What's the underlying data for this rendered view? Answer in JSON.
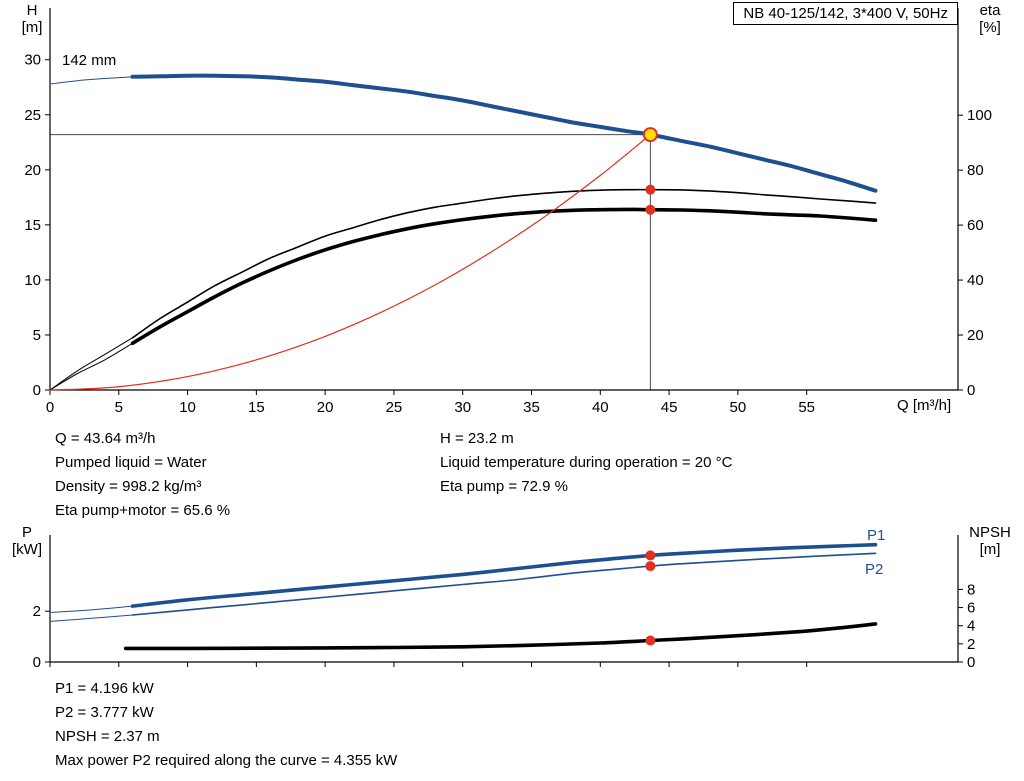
{
  "title_box": {
    "text": "NB 40-125/142, 3*400 V, 50Hz"
  },
  "labels": {
    "h_axis": [
      "H",
      "[m]"
    ],
    "eta_axis": [
      "eta",
      "[%]"
    ],
    "q_axis": "Q [m³/h]",
    "p_axis": [
      "P",
      "[kW]"
    ],
    "npsh_axis": [
      "NPSH",
      "[m]"
    ],
    "impeller": "142 mm",
    "p1": "P1",
    "p2": "P2"
  },
  "colors": {
    "curve_blue": "#1d4f91",
    "curve_black": "#000000",
    "curve_red": "#e0301e",
    "duty_fill": "#ffdf00",
    "duty_stroke": "#e0301e",
    "dot_red": "#e0301e",
    "crosshair": "#4a4a4a"
  },
  "chart_data": [
    {
      "id": "qh",
      "type": "line",
      "title": "NB 40-125/142, 3*400 V, 50Hz",
      "x": {
        "label": "Q [m³/h]",
        "range": [
          0,
          66
        ],
        "ticks": [
          0,
          5,
          10,
          15,
          20,
          25,
          30,
          35,
          40,
          45,
          50,
          55
        ]
      },
      "y_left": {
        "label": "H [m]",
        "range": [
          0,
          34.7
        ],
        "ticks": [
          0,
          5,
          10,
          15,
          20,
          25,
          30
        ]
      },
      "y_right": {
        "label": "eta [%]",
        "range": [
          0,
          139
        ],
        "ticks": [
          0,
          20,
          40,
          60,
          80,
          100
        ]
      },
      "series": [
        {
          "name": "head-curve-142mm",
          "axis": "left",
          "color": "#1d4f91",
          "width": 4,
          "thin_until": 6,
          "points": [
            [
              0,
              27.8
            ],
            [
              2,
              28.1
            ],
            [
              4,
              28.3
            ],
            [
              6,
              28.45
            ],
            [
              8,
              28.5
            ],
            [
              10,
              28.55
            ],
            [
              12,
              28.55
            ],
            [
              14,
              28.5
            ],
            [
              16,
              28.4
            ],
            [
              18,
              28.2
            ],
            [
              20,
              28.0
            ],
            [
              22,
              27.7
            ],
            [
              24,
              27.4
            ],
            [
              26,
              27.1
            ],
            [
              28,
              26.7
            ],
            [
              30,
              26.3
            ],
            [
              32,
              25.8
            ],
            [
              34,
              25.3
            ],
            [
              36,
              24.8
            ],
            [
              38,
              24.3
            ],
            [
              40,
              23.9
            ],
            [
              42,
              23.5
            ],
            [
              43.64,
              23.2
            ],
            [
              46,
              22.6
            ],
            [
              48,
              22.1
            ],
            [
              50,
              21.5
            ],
            [
              52,
              20.9
            ],
            [
              54,
              20.3
            ],
            [
              56,
              19.6
            ],
            [
              58,
              18.9
            ],
            [
              60,
              18.1
            ]
          ]
        },
        {
          "name": "eta-pump",
          "axis": "right",
          "color": "#000000",
          "width": 1.6,
          "thin_until": 6,
          "points": [
            [
              0,
              0
            ],
            [
              2,
              7
            ],
            [
              4,
              13
            ],
            [
              6,
              19
            ],
            [
              8,
              26
            ],
            [
              10,
              32
            ],
            [
              12,
              38
            ],
            [
              14,
              43
            ],
            [
              16,
              48
            ],
            [
              18,
              52
            ],
            [
              20,
              56
            ],
            [
              22,
              59
            ],
            [
              24,
              62
            ],
            [
              26,
              64.5
            ],
            [
              28,
              66.5
            ],
            [
              30,
              68
            ],
            [
              32,
              69.5
            ],
            [
              34,
              70.7
            ],
            [
              36,
              71.6
            ],
            [
              38,
              72.3
            ],
            [
              40,
              72.7
            ],
            [
              42,
              72.9
            ],
            [
              43.64,
              72.9
            ],
            [
              46,
              72.8
            ],
            [
              48,
              72.4
            ],
            [
              50,
              71.8
            ],
            [
              52,
              71
            ],
            [
              54,
              70.3
            ],
            [
              56,
              69.5
            ],
            [
              58,
              68.8
            ],
            [
              60,
              68
            ]
          ]
        },
        {
          "name": "eta-pump-motor",
          "axis": "right",
          "color": "#000000",
          "width": 3.6,
          "thin_until": 6,
          "points": [
            [
              0,
              0
            ],
            [
              2,
              6
            ],
            [
              4,
              11
            ],
            [
              6,
              17
            ],
            [
              8,
              23
            ],
            [
              10,
              28.5
            ],
            [
              12,
              34
            ],
            [
              14,
              39
            ],
            [
              16,
              43.5
            ],
            [
              18,
              47.5
            ],
            [
              20,
              51
            ],
            [
              22,
              54
            ],
            [
              24,
              56.5
            ],
            [
              26,
              58.7
            ],
            [
              28,
              60.5
            ],
            [
              30,
              62
            ],
            [
              32,
              63.2
            ],
            [
              34,
              64.2
            ],
            [
              36,
              64.9
            ],
            [
              38,
              65.4
            ],
            [
              40,
              65.6
            ],
            [
              42,
              65.7
            ],
            [
              43.64,
              65.6
            ],
            [
              46,
              65.5
            ],
            [
              48,
              65.2
            ],
            [
              50,
              64.7
            ],
            [
              52,
              64.1
            ],
            [
              54,
              63.7
            ],
            [
              56,
              63.3
            ],
            [
              58,
              62.6
            ],
            [
              60,
              61.8
            ]
          ]
        },
        {
          "name": "system-curve",
          "axis": "left",
          "color": "#e0301e",
          "width": 1.2,
          "points": [
            [
              0,
              0
            ],
            [
              4,
              0.19
            ],
            [
              8,
              0.78
            ],
            [
              12,
              1.75
            ],
            [
              16,
              3.12
            ],
            [
              20,
              4.87
            ],
            [
              24,
              7.02
            ],
            [
              28,
              9.55
            ],
            [
              32,
              12.48
            ],
            [
              36,
              15.79
            ],
            [
              40,
              19.49
            ],
            [
              43.64,
              23.2
            ]
          ]
        }
      ],
      "crosshair": {
        "x": 43.64,
        "y": 23.2
      },
      "markers": [
        {
          "name": "duty-point",
          "axis": "left",
          "x": 43.64,
          "y": 23.2,
          "kind": "duty"
        },
        {
          "name": "eta-pump-point",
          "axis": "right",
          "x": 43.64,
          "y": 72.9,
          "kind": "dot"
        },
        {
          "name": "eta-pump-motor-point",
          "axis": "right",
          "x": 43.64,
          "y": 65.6,
          "kind": "dot"
        }
      ]
    },
    {
      "id": "power",
      "type": "line",
      "x": {
        "label": "",
        "range": [
          0,
          66
        ],
        "ticks": [
          0,
          5,
          10,
          15,
          20,
          25,
          30,
          35,
          40,
          45,
          50,
          55
        ]
      },
      "y_left": {
        "label": "P [kW]",
        "range": [
          0,
          5.0
        ],
        "ticks": [
          0,
          2
        ]
      },
      "y_right": {
        "label": "NPSH [m]",
        "range": [
          0,
          14
        ],
        "ticks": [
          0,
          2,
          4,
          6,
          8
        ]
      },
      "series": [
        {
          "name": "p1-curve",
          "axis": "left",
          "color": "#1d4f91",
          "width": 3.6,
          "thin_until": 6,
          "points": [
            [
              0,
              1.95
            ],
            [
              3,
              2.05
            ],
            [
              6,
              2.2
            ],
            [
              10,
              2.45
            ],
            [
              14,
              2.65
            ],
            [
              18,
              2.85
            ],
            [
              22,
              3.05
            ],
            [
              26,
              3.25
            ],
            [
              30,
              3.45
            ],
            [
              34,
              3.68
            ],
            [
              38,
              3.92
            ],
            [
              41,
              4.07
            ],
            [
              43.64,
              4.196
            ],
            [
              46,
              4.28
            ],
            [
              50,
              4.4
            ],
            [
              54,
              4.5
            ],
            [
              57,
              4.56
            ],
            [
              60,
              4.62
            ]
          ]
        },
        {
          "name": "p2-curve",
          "axis": "left",
          "color": "#1d4f91",
          "width": 1.6,
          "thin_until": 6,
          "points": [
            [
              0,
              1.6
            ],
            [
              3,
              1.72
            ],
            [
              6,
              1.85
            ],
            [
              10,
              2.05
            ],
            [
              14,
              2.25
            ],
            [
              18,
              2.45
            ],
            [
              22,
              2.65
            ],
            [
              26,
              2.85
            ],
            [
              30,
              3.05
            ],
            [
              34,
              3.25
            ],
            [
              38,
              3.5
            ],
            [
              41,
              3.65
            ],
            [
              43.64,
              3.777
            ],
            [
              46,
              3.87
            ],
            [
              50,
              4.0
            ],
            [
              54,
              4.12
            ],
            [
              57,
              4.2
            ],
            [
              60,
              4.28
            ]
          ]
        },
        {
          "name": "npsh-curve",
          "axis": "right",
          "color": "#000000",
          "width": 3.6,
          "points": [
            [
              5.5,
              1.5
            ],
            [
              10,
              1.5
            ],
            [
              15,
              1.52
            ],
            [
              20,
              1.55
            ],
            [
              25,
              1.6
            ],
            [
              30,
              1.68
            ],
            [
              35,
              1.85
            ],
            [
              40,
              2.1
            ],
            [
              43.64,
              2.37
            ],
            [
              46,
              2.55
            ],
            [
              50,
              2.9
            ],
            [
              54,
              3.3
            ],
            [
              57,
              3.7
            ],
            [
              60,
              4.2
            ]
          ]
        }
      ],
      "markers": [
        {
          "name": "p1-point",
          "axis": "left",
          "x": 43.64,
          "y": 4.196,
          "kind": "dot"
        },
        {
          "name": "p2-point",
          "axis": "left",
          "x": 43.64,
          "y": 3.777,
          "kind": "dot"
        },
        {
          "name": "npsh-point",
          "axis": "right",
          "x": 43.64,
          "y": 2.37,
          "kind": "dot"
        }
      ]
    }
  ],
  "duty": {
    "q": "43.64",
    "h": "23.2",
    "eta_pump": "72.9",
    "eta_pump_motor": "65.6",
    "p1": "4.196",
    "p2": "3.777",
    "npsh": "2.37",
    "max_p2": "4.355"
  },
  "annotations": {
    "top_left": [
      "Q = 43.64 m³/h",
      "Pumped liquid = Water",
      "Density = 998.2 kg/m³",
      "Eta pump+motor = 65.6 %"
    ],
    "top_right": [
      "H = 23.2 m",
      "Liquid temperature during operation = 20 °C",
      "Eta pump = 72.9 %"
    ],
    "bottom": [
      "P1 = 4.196 kW",
      "P2 = 3.777 kW",
      "NPSH = 2.37 m",
      "Max power P2 required along the curve = 4.355 kW"
    ]
  }
}
